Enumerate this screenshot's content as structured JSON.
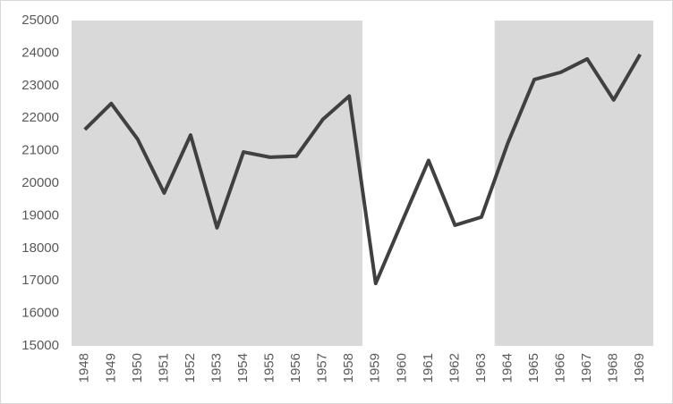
{
  "chart_data": {
    "type": "line",
    "categories": [
      "1948",
      "1949",
      "1950",
      "1951",
      "1952",
      "1953",
      "1954",
      "1955",
      "1956",
      "1957",
      "1958",
      "1959",
      "1960",
      "1961",
      "1962",
      "1963",
      "1964",
      "1965",
      "1966",
      "1967",
      "1968",
      "1969"
    ],
    "series": [
      {
        "color": "#404040",
        "values": [
          21650,
          22450,
          21350,
          19700,
          21480,
          18630,
          20960,
          20800,
          20830,
          21960,
          22680,
          16920,
          18820,
          20700,
          18710,
          18960,
          21240,
          23190,
          23410,
          23820,
          22560,
          23960
        ]
      }
    ],
    "shaded": [
      {
        "from": "1948",
        "to": "1958"
      },
      {
        "from": "1964",
        "to": "1969"
      }
    ],
    "shade_color": "#d9d9d9",
    "ylim": [
      15000,
      25000
    ],
    "yticks": [
      15000,
      16000,
      17000,
      18000,
      19000,
      20000,
      21000,
      22000,
      23000,
      24000,
      25000
    ],
    "grid": false
  }
}
